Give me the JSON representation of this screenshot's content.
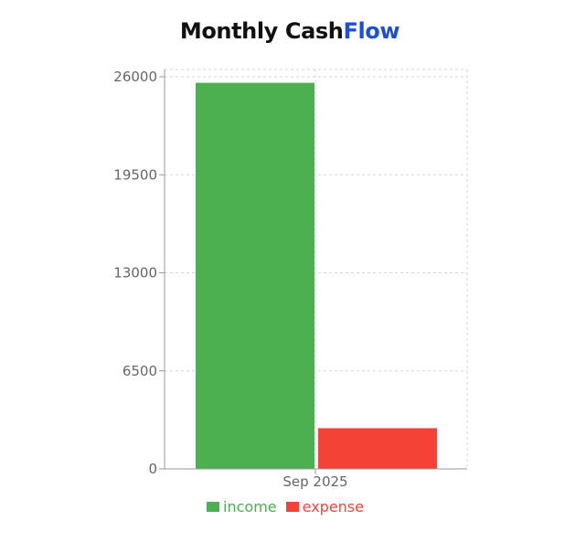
{
  "header": {
    "title_main": "Monthly Cash",
    "title_accent": "Flow"
  },
  "colors": {
    "income": "#4caf50",
    "expense": "#f44336",
    "accent": "#1e4fd8",
    "grid": "#d6d6d6",
    "axis": "#999999"
  },
  "chart_data": {
    "type": "bar",
    "title": "Monthly CashFlow",
    "categories": [
      "Sep 2025"
    ],
    "series": [
      {
        "name": "income",
        "values": [
          25600
        ]
      },
      {
        "name": "expense",
        "values": [
          2700
        ]
      }
    ],
    "yticks": [
      0,
      6500,
      13000,
      19500,
      26000
    ],
    "ylim": [
      0,
      26000
    ],
    "grid": true,
    "legend": "bottom"
  }
}
